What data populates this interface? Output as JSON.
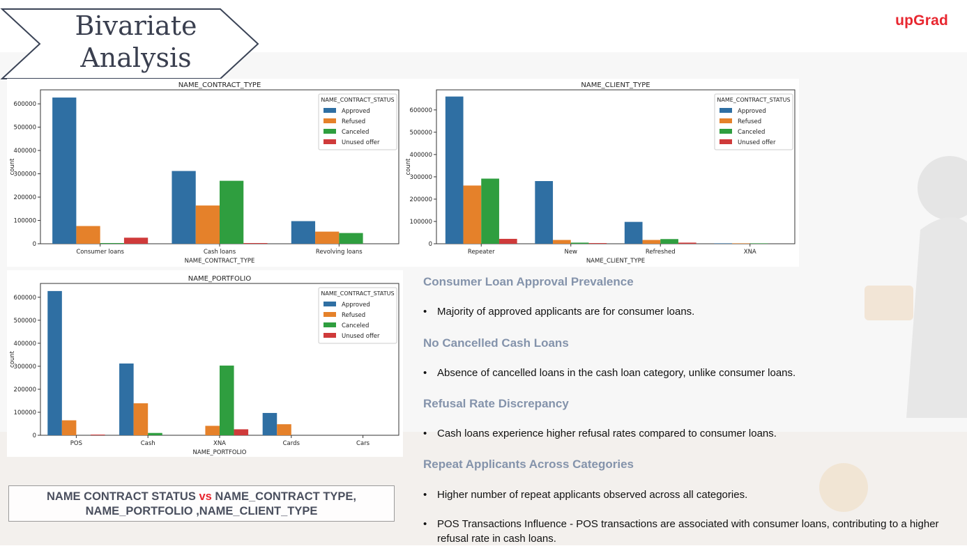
{
  "header": {
    "title_line1": "Bivariate",
    "title_line2": "Analysis",
    "logo": "upGrad"
  },
  "caption": {
    "part1": "NAME CONTRACT STATUS",
    "vs": "vs",
    "part2": "NAME_CONTRACT TYPE,",
    "line2": "NAME_PORTFOLIO ,NAME_CLIENT_TYPE"
  },
  "insights": [
    {
      "heading": "Consumer Loan Approval Prevalence",
      "bullet": "Majority of approved applicants are for consumer loans."
    },
    {
      "heading": "No Cancelled Cash Loans",
      "bullet": "Absence of cancelled loans in the cash loan category, unlike consumer loans."
    },
    {
      "heading": "Refusal Rate Discrepancy",
      "bullet": "Cash loans experience higher refusal rates compared to consumer loans."
    },
    {
      "heading": "Repeat Applicants Across Categories",
      "bullet": "Higher number of repeat applicants observed across all categories."
    },
    {
      "heading": "",
      "bullet": "POS Transactions Influence  - POS transactions are associated with consumer loans, contributing to a higher refusal rate in cash loans."
    }
  ],
  "colors": {
    "Approved": "#2f6fa3",
    "Refused": "#e5812a",
    "Canceled": "#2f9e3f",
    "Unused offer": "#cf3a3a",
    "accent": "#e8262f",
    "heading": "#8493ab"
  },
  "chart_data": [
    {
      "type": "bar",
      "title": "NAME_CONTRACT_TYPE",
      "xlabel": "NAME_CONTRACT_TYPE",
      "ylabel": "count",
      "categories": [
        "Consumer loans",
        "Cash loans",
        "Revolving loans"
      ],
      "series": [
        {
          "name": "Approved",
          "values": [
            627000,
            312000,
            97000
          ]
        },
        {
          "name": "Refused",
          "values": [
            76000,
            164000,
            52000
          ]
        },
        {
          "name": "Canceled",
          "values": [
            3000,
            270000,
            46000
          ]
        },
        {
          "name": "Unused offer",
          "values": [
            26000,
            3000,
            0
          ]
        }
      ],
      "yticks": [
        0,
        100000,
        200000,
        300000,
        400000,
        500000,
        600000
      ],
      "ylim": [
        0,
        660000
      ],
      "legend": {
        "title": "NAME_CONTRACT_STATUS",
        "placement": "top-right"
      }
    },
    {
      "type": "bar",
      "title": "NAME_CLIENT_TYPE",
      "xlabel": "NAME_CLIENT_TYPE",
      "ylabel": "count",
      "categories": [
        "Repeater",
        "New",
        "Refreshed",
        "XNA"
      ],
      "series": [
        {
          "name": "Approved",
          "values": [
            660000,
            281000,
            98000,
            2000
          ]
        },
        {
          "name": "Refused",
          "values": [
            261000,
            17000,
            17000,
            2000
          ]
        },
        {
          "name": "Canceled",
          "values": [
            292000,
            5000,
            21000,
            2000
          ]
        },
        {
          "name": "Unused offer",
          "values": [
            22000,
            3000,
            5000,
            0
          ]
        }
      ],
      "yticks": [
        0,
        100000,
        200000,
        300000,
        400000,
        500000,
        600000
      ],
      "ylim": [
        0,
        690000
      ],
      "legend": {
        "title": "NAME_CONTRACT_STATUS",
        "placement": "top-right"
      }
    },
    {
      "type": "bar",
      "title": "NAME_PORTFOLIO",
      "xlabel": "NAME_PORTFOLIO",
      "ylabel": "count",
      "categories": [
        "POS",
        "Cash",
        "XNA",
        "Cards",
        "Cars"
      ],
      "series": [
        {
          "name": "Approved",
          "values": [
            627000,
            312000,
            0,
            97000,
            0
          ]
        },
        {
          "name": "Refused",
          "values": [
            65000,
            139000,
            41000,
            48000,
            0
          ]
        },
        {
          "name": "Canceled",
          "values": [
            0,
            10000,
            303000,
            0,
            0
          ]
        },
        {
          "name": "Unused offer",
          "values": [
            3000,
            0,
            26000,
            0,
            0
          ]
        }
      ],
      "yticks": [
        0,
        100000,
        200000,
        300000,
        400000,
        500000,
        600000
      ],
      "ylim": [
        0,
        660000
      ],
      "legend": {
        "title": "NAME_CONTRACT_STATUS",
        "placement": "top-right"
      }
    }
  ]
}
